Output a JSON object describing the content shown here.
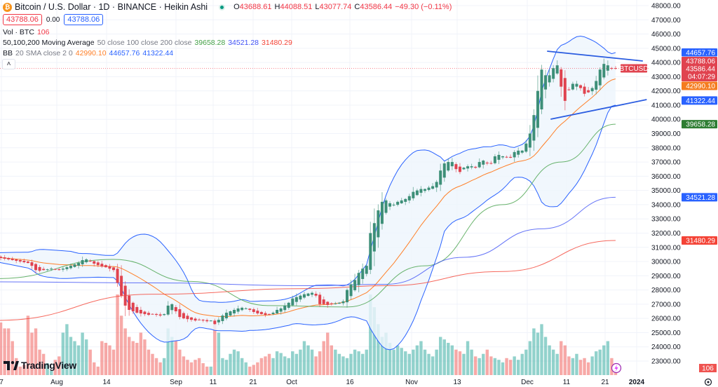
{
  "header": {
    "symbol_title": "Bitcoin / U.S. Dollar · 1D · BINANCE · Heikin Ashi",
    "ohlc": {
      "o_label": "O",
      "o": "43688.61",
      "h_label": "H",
      "h": "44088.51",
      "l_label": "L",
      "l": "43077.74",
      "c_label": "C",
      "c": "43586.44",
      "change": "−49.30 (−0.11%)"
    },
    "sell_price": "43788.06",
    "spread": "0.00",
    "buy_price": "43788.06",
    "volume": {
      "label": "Vol · BTC",
      "value": "106"
    },
    "ma": {
      "label": "50,100,200 Moving Average",
      "params": "50 close 100 close 200 close",
      "v50": "39658.28",
      "v100": "34521.28",
      "v200": "31480.29"
    },
    "bb": {
      "label": "BB",
      "params": "20 SMA close 2 0",
      "basis": "42990.10",
      "upper": "44657.76",
      "lower": "41322.44"
    },
    "collapse_icon": "chevron-up-icon"
  },
  "branding": {
    "logo_text": "TradingView"
  },
  "colors": {
    "up": "#26a69a",
    "down": "#ef5350",
    "up_candle": "#3d8f78",
    "down_candle": "#e0434f",
    "ma50": "#43a047",
    "ma100": "#3f51f5",
    "ma200": "#f44336",
    "bb_basis": "#ff7f27",
    "bb_band": "#2962ff",
    "bb_fill": "#eef5fd",
    "trendline": "#2a5ce0"
  },
  "chart_data": {
    "type": "candlestick",
    "candle_style": "Heikin Ashi",
    "symbol": "BTCUSD",
    "interval": "1D",
    "ylim": [
      23000,
      48000
    ],
    "y_ticks": [
      48000,
      47000,
      46000,
      45000,
      44000,
      43000,
      42000,
      41000,
      40000,
      39000,
      38000,
      37000,
      36000,
      35000,
      34000,
      33000,
      32000,
      31000,
      30000,
      29000,
      28000,
      27000,
      26000,
      25000,
      24000,
      23000
    ],
    "x_ticks": [
      {
        "label": "7"
      },
      {
        "label": "Aug"
      },
      {
        "label": "14"
      },
      {
        "label": "Sep"
      },
      {
        "label": "11"
      },
      {
        "label": "21"
      },
      {
        "label": "Oct"
      },
      {
        "label": "16"
      },
      {
        "label": "Nov"
      },
      {
        "label": "13"
      },
      {
        "label": "Dec"
      },
      {
        "label": "11"
      },
      {
        "label": "21"
      },
      {
        "label": "2024",
        "bold": true
      }
    ],
    "closes": [
      30300,
      30250,
      30200,
      30150,
      30100,
      30050,
      30000,
      29950,
      29900,
      29700,
      29400,
      29350,
      29400,
      29450,
      29500,
      29450,
      29400,
      29500,
      29600,
      29700,
      29800,
      29900,
      30100,
      30150,
      30000,
      29850,
      29750,
      29650,
      29600,
      29500,
      29400,
      28500,
      27600,
      26900,
      26600,
      26500,
      26400,
      26350,
      26300,
      26250,
      26300,
      26250,
      26200,
      26300,
      26900,
      27000,
      26500,
      26100,
      26000,
      25950,
      25900,
      25850,
      25900,
      25850,
      25800,
      25850,
      25600,
      25900,
      26200,
      26400,
      26500,
      26600,
      26700,
      26750,
      26700,
      26600,
      26450,
      26350,
      26300,
      26250,
      26300,
      26400,
      26600,
      26700,
      26900,
      27100,
      27400,
      27500,
      27600,
      27700,
      27750,
      27800,
      27600,
      27000,
      27000,
      26950,
      27000,
      27050,
      27100,
      27200,
      28000,
      28400,
      28700,
      29200,
      29500,
      29700,
      32000,
      32700,
      33600,
      34200,
      34300,
      34100,
      34000,
      34200,
      34300,
      34400,
      34600,
      34900,
      35000,
      35100,
      35100,
      35200,
      35300,
      35600,
      36400,
      36900,
      37000,
      37000,
      36500,
      36300,
      36600,
      36700,
      36700,
      36600,
      37000,
      37100,
      36900,
      36900,
      37400,
      37500,
      37400,
      37350,
      37300,
      37700,
      37800,
      37800,
      38300,
      39000,
      40300,
      42000,
      43500,
      43100,
      43100,
      43600,
      43800,
      42300,
      41300,
      42100,
      42500,
      42500,
      42200,
      41800,
      41900,
      42200,
      42700,
      43500,
      43900,
      43800,
      43600,
      43586.44
    ],
    "volume": [
      60,
      62,
      55,
      55,
      40,
      20,
      10,
      12,
      70,
      50,
      55,
      30,
      25,
      14,
      5,
      18,
      22,
      50,
      60,
      45,
      40,
      35,
      50,
      42,
      30,
      15,
      10,
      40,
      38,
      35,
      30,
      95,
      70,
      55,
      45,
      40,
      38,
      50,
      42,
      30,
      25,
      20,
      15,
      20,
      55,
      45,
      40,
      30,
      22,
      18,
      15,
      18,
      20,
      14,
      10,
      10,
      60,
      50,
      20,
      18,
      25,
      30,
      28,
      20,
      15,
      10,
      12,
      15,
      20,
      22,
      25,
      20,
      28,
      26,
      22,
      20,
      28,
      25,
      30,
      40,
      35,
      30,
      22,
      28,
      40,
      50,
      35,
      30,
      25,
      22,
      20,
      25,
      30,
      28,
      25,
      30,
      95,
      80,
      60,
      45,
      50,
      38,
      30,
      35,
      32,
      28,
      25,
      30,
      35,
      40,
      30,
      25,
      22,
      30,
      45,
      42,
      38,
      35,
      30,
      28,
      25,
      40,
      30,
      22,
      20,
      25,
      30,
      22,
      20,
      18,
      15,
      20,
      18,
      22,
      18,
      25,
      30,
      40,
      55,
      50,
      60,
      45,
      35,
      30,
      25,
      40,
      35,
      22,
      20,
      25,
      18,
      20,
      15,
      22,
      28,
      30,
      35,
      40,
      20,
      8
    ],
    "ma_lines": {
      "ma50": [
        [
          0,
          28800
        ],
        [
          30,
          30150
        ],
        [
          50,
          28600
        ],
        [
          70,
          26900
        ],
        [
          90,
          26800
        ],
        [
          110,
          29700
        ],
        [
          130,
          34000
        ],
        [
          145,
          37000
        ],
        [
          159,
          39658.28
        ]
      ],
      "ma100": [
        [
          0,
          28570
        ],
        [
          40,
          28500
        ],
        [
          80,
          28300
        ],
        [
          100,
          28400
        ],
        [
          120,
          30300
        ],
        [
          140,
          32300
        ],
        [
          159,
          34521.28
        ]
      ],
      "ma200": [
        [
          0,
          25860
        ],
        [
          40,
          27700
        ],
        [
          80,
          28100
        ],
        [
          100,
          28300
        ],
        [
          130,
          29300
        ],
        [
          159,
          31480.29
        ]
      ]
    },
    "trendlines": [
      {
        "from": [
          141.4,
          44795
        ],
        "to": [
          166,
          44105
        ]
      },
      {
        "from": [
          142.3,
          40010
        ],
        "to": [
          167,
          41390
        ]
      }
    ],
    "last_price_line": 43586.44,
    "price_tags": {
      "bb_upper": "44657.76",
      "ask": "43788.06",
      "last": "43586.44",
      "countdown": "04:07:29",
      "bb_basis": "42990.10",
      "bb_lower": "41322.44",
      "ma50": "39658.28",
      "ma100": "34521.28",
      "ma200": "31480.29",
      "volume": "106",
      "symbol_label": "BTCUSD"
    },
    "bottom_right_icon": "gear-icon",
    "alert_icon": "lightning-icon"
  }
}
